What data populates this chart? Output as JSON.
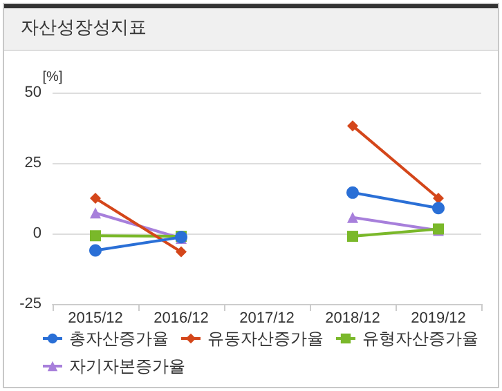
{
  "chart_data": {
    "type": "line",
    "title": "자산성장성지표",
    "ylabel": "[%]",
    "categories": [
      "2015/12",
      "2016/12",
      "2017/12",
      "2018/12",
      "2019/12"
    ],
    "series": [
      {
        "name": "총자산증가율",
        "color": "#2a6fd6",
        "marker": "circle",
        "values": [
          -6.0,
          -1.3,
          null,
          14.5,
          9.0
        ]
      },
      {
        "name": "유동자산증가율",
        "color": "#d4461a",
        "marker": "diamond",
        "values": [
          12.5,
          -6.5,
          null,
          38.2,
          12.5
        ]
      },
      {
        "name": "유형자산증가율",
        "color": "#7ab82a",
        "marker": "square",
        "values": [
          -0.8,
          -1.0,
          null,
          -1.0,
          1.6
        ]
      },
      {
        "name": "자기자본증가율",
        "color": "#a77fdb",
        "marker": "triangle",
        "values": [
          7.3,
          -1.7,
          null,
          5.7,
          1.1
        ]
      }
    ],
    "ylim": [
      -25,
      50
    ],
    "yticks": [
      -25,
      0,
      25,
      50
    ],
    "grid": "y",
    "legend": "bottom"
  }
}
